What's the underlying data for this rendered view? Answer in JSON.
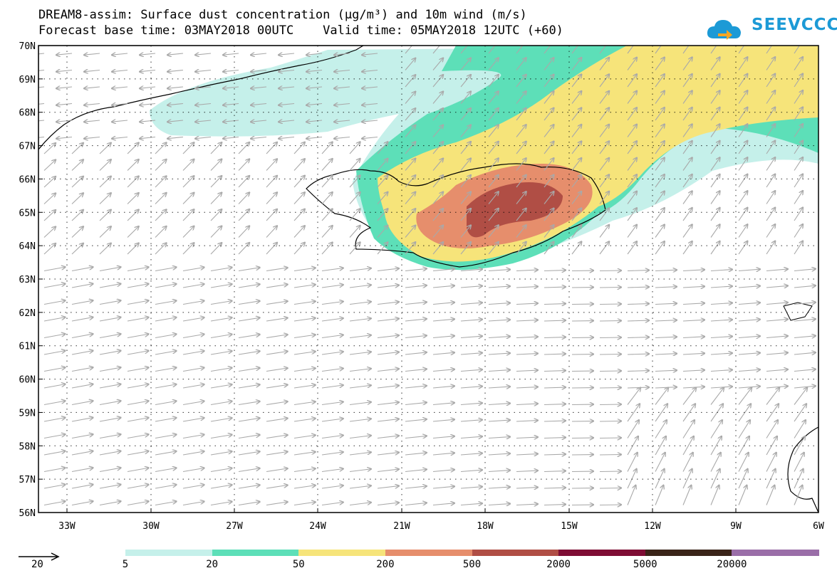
{
  "header": {
    "title_line1": "DREAM8-assim: Surface dust concentration (µg/m³) and 10m wind (m/s)",
    "title_line2": "Forecast base time: 03MAY2018 00UTC    Valid time: 05MAY2018 12UTC (+60)"
  },
  "logo": {
    "text": "SEEVCCC",
    "icon": "cloud-arrow-icon",
    "color": "#1c9ad6"
  },
  "axes": {
    "lat_labels": [
      "70N",
      "69N",
      "68N",
      "67N",
      "66N",
      "65N",
      "64N",
      "63N",
      "62N",
      "61N",
      "60N",
      "59N",
      "58N",
      "57N",
      "56N"
    ],
    "lon_labels": [
      "33W",
      "30W",
      "27W",
      "24W",
      "21W",
      "18W",
      "15W",
      "12W",
      "9W",
      "6W"
    ]
  },
  "legend": {
    "wind_scale_label": "20",
    "bins": [
      {
        "label": "5",
        "color": "#c5f0ea"
      },
      {
        "label": "20",
        "color": "#5ddfb8"
      },
      {
        "label": "50",
        "color": "#f6e47a"
      },
      {
        "label": "200",
        "color": "#e68e6c"
      },
      {
        "label": "500",
        "color": "#b04e45"
      },
      {
        "label": "2000",
        "color": "#7e0d34"
      },
      {
        "label": "5000",
        "color": "#3a2418"
      },
      {
        "label": "20000",
        "color": "#9a6ea8"
      }
    ]
  },
  "colors": {
    "arrow": "#a9a9a9",
    "coast": "#000000"
  }
}
